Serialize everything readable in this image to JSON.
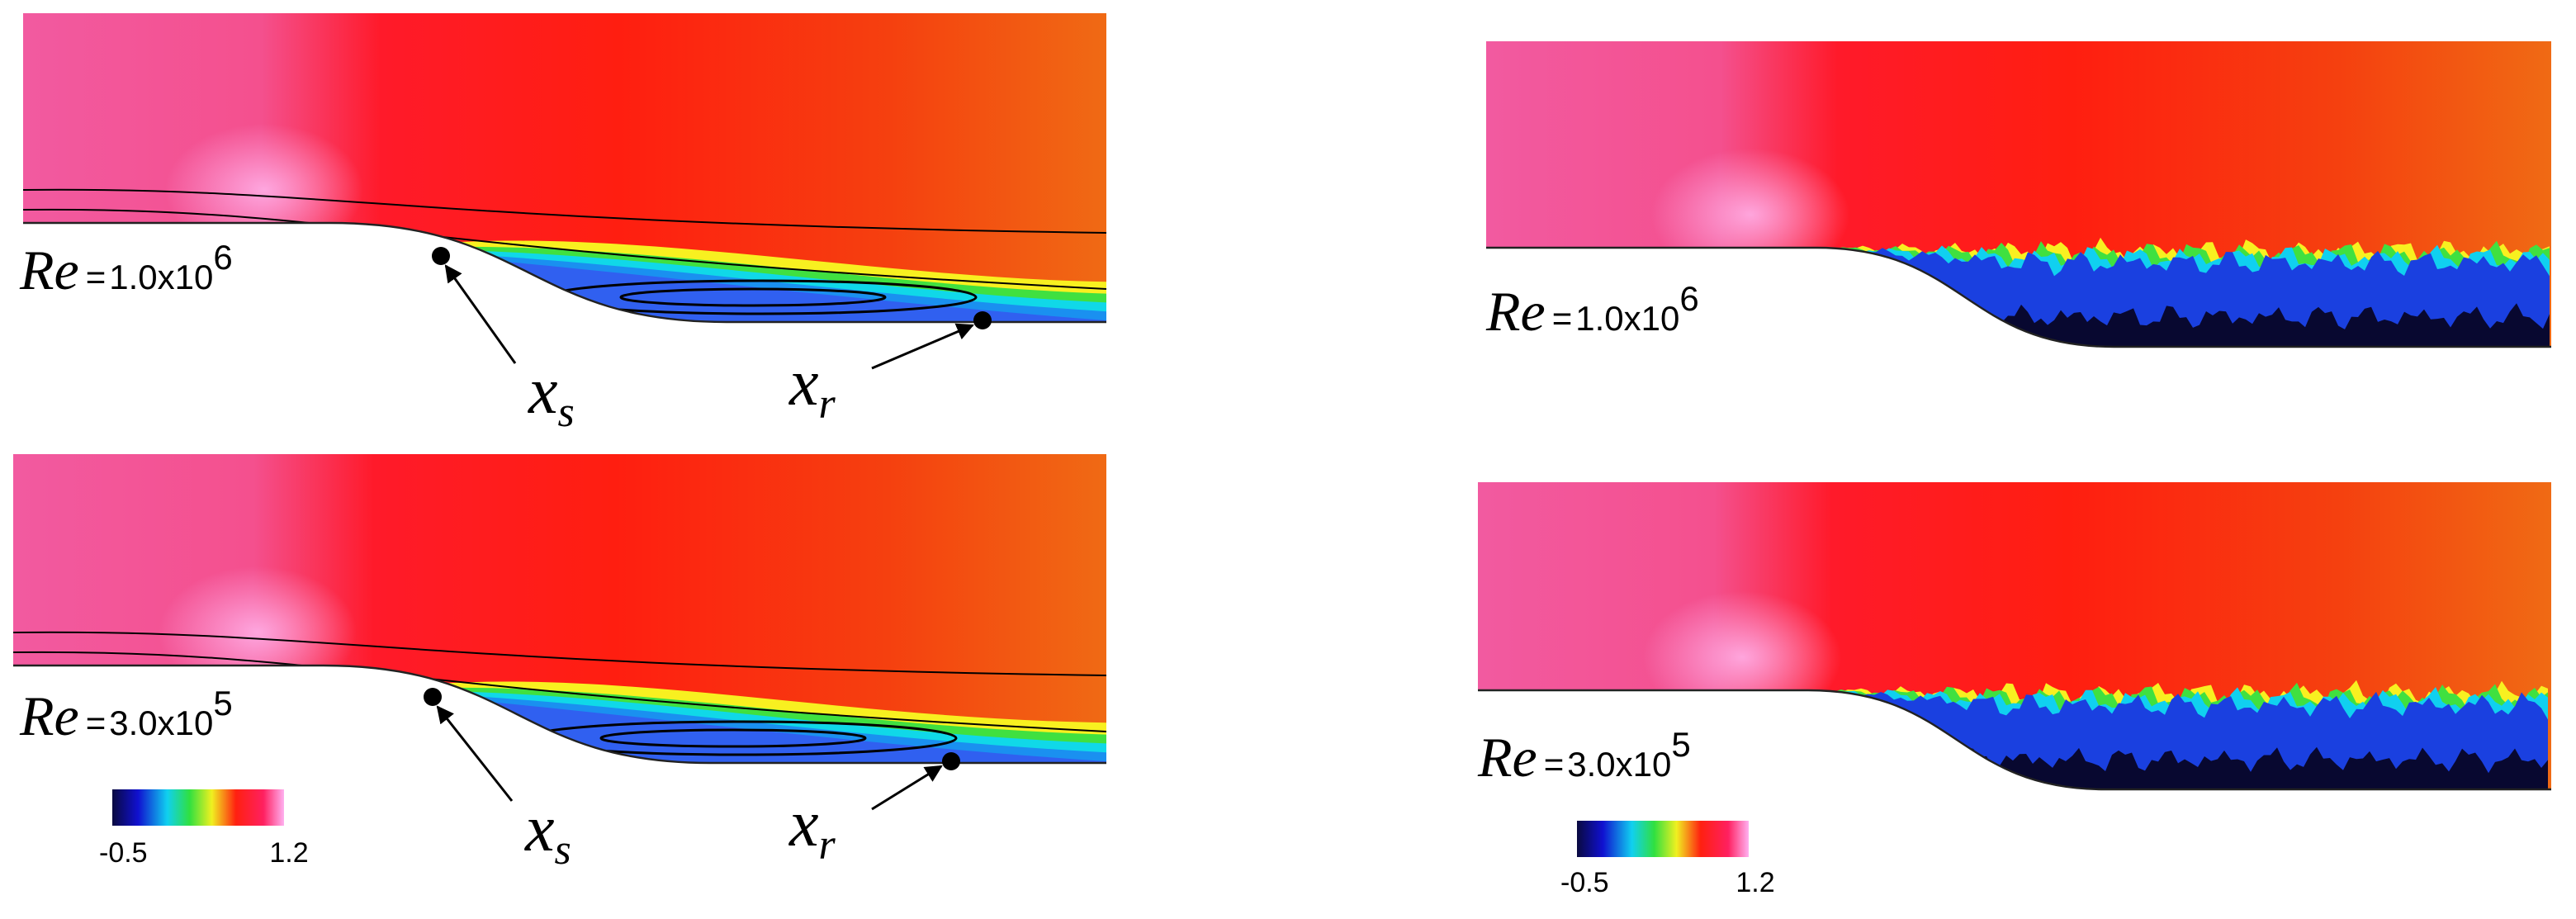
{
  "panels": [
    {
      "re": {
        "symbol": "Re",
        "equals": "=",
        "mantissa": "1.0x10",
        "exponent": "6"
      },
      "markers": [
        {
          "base": "x",
          "sub": "s"
        },
        {
          "base": "x",
          "sub": "r"
        }
      ]
    },
    {
      "re": {
        "symbol": "Re",
        "equals": "=",
        "mantissa": "3.0x10",
        "exponent": "5"
      },
      "markers": [
        {
          "base": "x",
          "sub": "s"
        },
        {
          "base": "x",
          "sub": "r"
        }
      ]
    },
    {
      "re": {
        "symbol": "Re",
        "equals": "=",
        "mantissa": "1.0x10",
        "exponent": "6"
      }
    },
    {
      "re": {
        "symbol": "Re",
        "equals": "=",
        "mantissa": "3.0x10",
        "exponent": "5"
      }
    }
  ],
  "colorbars": [
    {
      "min": -0.5,
      "max": 1.2
    },
    {
      "min": -0.5,
      "max": 1.2
    }
  ]
}
